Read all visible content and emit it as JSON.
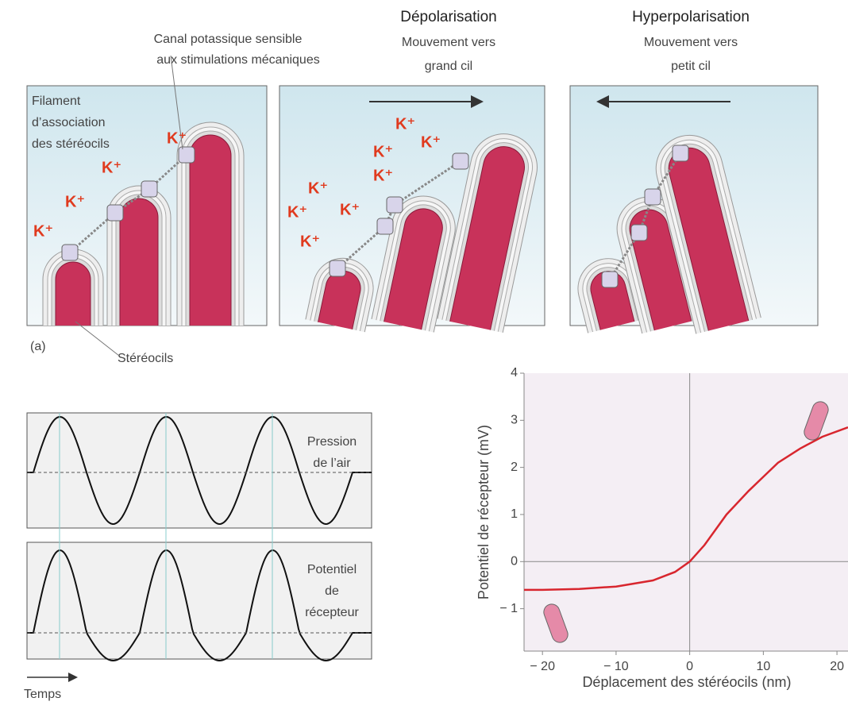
{
  "panel_a": {
    "label": "(a)",
    "channel_label": [
      "Canal potassique sensible",
      "aux stimulations mécaniques"
    ],
    "filament_label": [
      "Filament",
      "d’association",
      "des stéréocils"
    ],
    "stereocilia_label": "Stéréocils",
    "ion": "K⁺",
    "depolarisation": {
      "title": "Dépolarisation",
      "subtitle": [
        "Mouvement vers",
        "grand cil"
      ]
    },
    "hyperpolarisation": {
      "title": "Hyperpolarisation",
      "subtitle": [
        "Mouvement vers",
        "petit cil"
      ]
    }
  },
  "waveforms": {
    "top_label": [
      "Pression",
      "de l’air"
    ],
    "bottom_label": [
      "Potentiel",
      "de",
      "récepteur"
    ],
    "time_label": "Temps"
  },
  "chart_data": {
    "type": "line",
    "x_label": "Déplacement des stéréocils (nm)",
    "y_label": "Potentiel de récepteur (mV)",
    "x": [
      -22.5,
      -20,
      -15,
      -10,
      -5,
      -2,
      0,
      2,
      5,
      8,
      10,
      12,
      15,
      18,
      21.5
    ],
    "values": [
      -0.6,
      -0.6,
      -0.58,
      -0.53,
      -0.4,
      -0.22,
      0,
      0.35,
      1.0,
      1.5,
      1.8,
      2.1,
      2.4,
      2.65,
      2.85
    ],
    "color": "#d8262e",
    "xlim": [
      -22.5,
      21.5
    ],
    "ylim": [
      -1.9,
      4
    ],
    "xticks": [
      {
        "value": -20,
        "label": "− 20"
      },
      {
        "value": -10,
        "label": "− 10"
      },
      0,
      10,
      20
    ],
    "yticks": [
      {
        "value": -1,
        "label": "− 1"
      },
      0,
      1,
      2,
      3,
      4
    ]
  }
}
